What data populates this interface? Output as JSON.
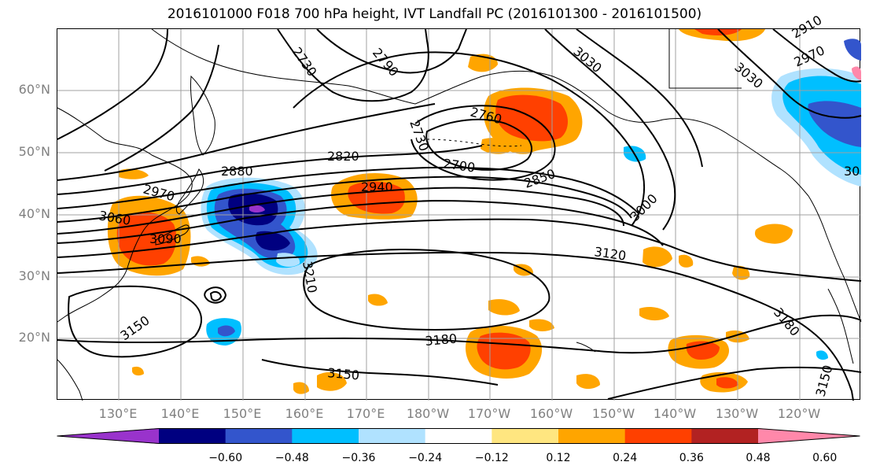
{
  "title": "2016101000 F018 700 hPa height, IVT Landfall PC (2016101300 - 2016101500)",
  "colors": {
    "land_outline": "#000000",
    "grid": "#a0a0a0",
    "contour": "#000000",
    "axis_label": "#808080"
  },
  "map": {
    "lat_labels": [
      "60°N",
      "50°N",
      "40°N",
      "30°N",
      "20°N"
    ],
    "lon_labels": [
      "130°E",
      "140°E",
      "150°E",
      "160°E",
      "170°E",
      "180°W",
      "170°W",
      "160°W",
      "150°W",
      "140°W",
      "130°W",
      "120°W"
    ],
    "contour_labels": [
      "2730",
      "2790",
      "3030",
      "2910",
      "2970",
      "3030",
      "2760",
      "2730",
      "2820",
      "2880",
      "2700",
      "2940",
      "2850",
      "2970",
      "3060",
      "3000",
      "3090",
      "3120",
      "3210",
      "3150",
      "3180",
      "3180",
      "3150",
      "3150",
      "30"
    ]
  },
  "colorbar": {
    "colors": [
      "#9933cc",
      "#000080",
      "#3355cc",
      "#00bfff",
      "#b0e2ff",
      "#ffffff",
      "#ffe680",
      "#ffa500",
      "#ff4000",
      "#b22222",
      "#ff88aa"
    ],
    "labels": [
      "−0.60",
      "−0.48",
      "−0.36",
      "−0.24",
      "−0.12",
      "0.12",
      "0.24",
      "0.36",
      "0.48",
      "0.60"
    ]
  }
}
